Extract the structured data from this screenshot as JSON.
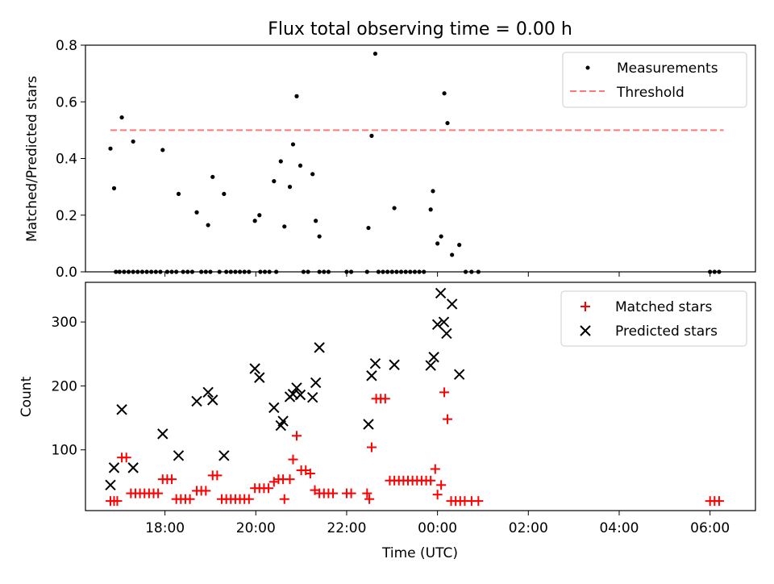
{
  "chart_data": [
    {
      "type": "scatter",
      "title": "Flux total observing time = 0.00 h",
      "xlabel": "",
      "ylabel": "Matched/Predicted stars",
      "x_unit": "hours UTC (values past 24 are next day)",
      "xlim": [
        16.25,
        31.0
      ],
      "ylim": [
        0.0,
        0.8
      ],
      "yticks": [
        "0.0",
        "0.2",
        "0.4",
        "0.6",
        "0.8"
      ],
      "threshold": {
        "value": 0.5,
        "x_range": [
          16.8,
          30.3
        ],
        "color": "#ff7777"
      },
      "legend": {
        "position": "top-right",
        "entries": [
          "Measurements",
          "Threshold"
        ]
      },
      "series": [
        {
          "name": "Measurements",
          "color": "#000000",
          "x": [
            16.8,
            16.88,
            17.05,
            17.3,
            17.95,
            18.3,
            18.7,
            18.95,
            19.05,
            19.3,
            19.98,
            20.08,
            20.4,
            20.55,
            20.63,
            20.75,
            20.82,
            20.9,
            20.98,
            21.25,
            21.32,
            21.4,
            22.48,
            22.55,
            22.63,
            23.05,
            23.85,
            23.9,
            24.0,
            24.08,
            24.15,
            24.22,
            24.32,
            24.48,
            16.92,
            17.0,
            17.1,
            17.2,
            17.3,
            17.4,
            17.5,
            17.6,
            17.7,
            17.8,
            17.9,
            18.05,
            18.15,
            18.25,
            18.4,
            18.5,
            18.6,
            18.8,
            18.9,
            19.0,
            19.2,
            19.35,
            19.45,
            19.55,
            19.65,
            19.75,
            19.85,
            20.1,
            20.2,
            20.3,
            20.45,
            21.05,
            21.15,
            21.4,
            21.5,
            21.6,
            22.0,
            22.1,
            22.45,
            22.7,
            22.8,
            22.9,
            23.0,
            23.1,
            23.2,
            23.3,
            23.4,
            23.5,
            23.6,
            23.7,
            24.62,
            24.75,
            24.9,
            30.0,
            30.1,
            30.2
          ],
          "y": [
            0.435,
            0.295,
            0.545,
            0.46,
            0.43,
            0.275,
            0.21,
            0.165,
            0.335,
            0.275,
            0.18,
            0.2,
            0.32,
            0.39,
            0.16,
            0.3,
            0.45,
            0.62,
            0.375,
            0.345,
            0.18,
            0.125,
            0.155,
            0.48,
            0.77,
            0.225,
            0.22,
            0.285,
            0.1,
            0.125,
            0.63,
            0.525,
            0.06,
            0.095,
            0,
            0,
            0,
            0,
            0,
            0,
            0,
            0,
            0,
            0,
            0,
            0,
            0,
            0,
            0,
            0,
            0,
            0,
            0,
            0,
            0,
            0,
            0,
            0,
            0,
            0,
            0,
            0,
            0,
            0,
            0,
            0,
            0,
            0,
            0,
            0,
            0,
            0,
            0,
            0,
            0,
            0,
            0,
            0,
            0,
            0,
            0,
            0,
            0,
            0,
            0,
            0,
            0,
            0,
            0,
            0
          ]
        }
      ]
    },
    {
      "type": "scatter",
      "title": "",
      "xlabel": "Time (UTC)",
      "ylabel": "Count",
      "x_unit": "hours UTC (values past 24 are next day)",
      "xlim": [
        16.25,
        31.0
      ],
      "ylim": [
        5,
        362
      ],
      "xtick_values": [
        18,
        20,
        22,
        24,
        26,
        28,
        30
      ],
      "xticks": [
        "18:00",
        "20:00",
        "22:00",
        "00:00",
        "02:00",
        "04:00",
        "06:00"
      ],
      "ytick_values": [
        100,
        200,
        300
      ],
      "yticks": [
        "100",
        "200",
        "300"
      ],
      "legend": {
        "position": "top-right",
        "entries": [
          "Matched stars",
          "Predicted stars"
        ]
      },
      "series": [
        {
          "name": "Matched stars",
          "color": "#ff0000",
          "marker": "plus",
          "x": [
            16.8,
            16.88,
            16.95,
            17.05,
            17.15,
            17.25,
            17.35,
            17.45,
            17.55,
            17.65,
            17.75,
            17.85,
            17.95,
            18.05,
            18.15,
            18.25,
            18.35,
            18.45,
            18.55,
            18.7,
            18.8,
            18.9,
            19.05,
            19.15,
            19.25,
            19.35,
            19.45,
            19.55,
            19.65,
            19.75,
            19.85,
            19.98,
            20.08,
            20.18,
            20.28,
            20.4,
            20.5,
            20.6,
            20.63,
            20.75,
            20.82,
            20.9,
            21.0,
            21.1,
            21.2,
            21.3,
            21.4,
            21.5,
            21.6,
            21.7,
            22.0,
            22.1,
            22.45,
            22.5,
            22.55,
            22.65,
            22.75,
            22.85,
            22.95,
            23.05,
            23.15,
            23.25,
            23.35,
            23.45,
            23.55,
            23.65,
            23.75,
            23.85,
            23.95,
            24.0,
            24.08,
            24.15,
            24.22,
            24.3,
            24.4,
            24.5,
            24.6,
            24.75,
            24.9,
            30.0,
            30.1,
            30.2
          ],
          "y": [
            20,
            20,
            20,
            88,
            88,
            32,
            32,
            32,
            32,
            32,
            32,
            32,
            54,
            54,
            54,
            23,
            23,
            23,
            23,
            36,
            36,
            36,
            60,
            60,
            23,
            23,
            23,
            23,
            23,
            23,
            23,
            40,
            40,
            40,
            40,
            50,
            54,
            54,
            23,
            54,
            85,
            122,
            68,
            68,
            63,
            37,
            32,
            32,
            32,
            32,
            32,
            32,
            32,
            23,
            104,
            180,
            180,
            180,
            52,
            52,
            52,
            52,
            52,
            52,
            52,
            52,
            52,
            52,
            70,
            30,
            45,
            190,
            148,
            20,
            20,
            20,
            20,
            20,
            20,
            20,
            20,
            20
          ]
        },
        {
          "name": "Predicted stars",
          "color": "#000000",
          "marker": "x",
          "x": [
            16.8,
            16.88,
            17.05,
            17.3,
            17.95,
            18.3,
            18.7,
            18.95,
            19.05,
            19.3,
            19.98,
            20.08,
            20.4,
            20.55,
            20.6,
            20.75,
            20.82,
            20.9,
            20.98,
            21.25,
            21.32,
            21.4,
            22.48,
            22.55,
            22.63,
            23.05,
            23.85,
            23.92,
            24.0,
            24.07,
            24.14,
            24.2,
            24.32,
            24.48
          ],
          "y": [
            45,
            72,
            163,
            72,
            125,
            91,
            176,
            190,
            178,
            91,
            227,
            213,
            166,
            138,
            145,
            183,
            187,
            197,
            186,
            182,
            205,
            260,
            140,
            216,
            235,
            233,
            232,
            245,
            296,
            345,
            300,
            282,
            328,
            218
          ]
        }
      ]
    }
  ]
}
